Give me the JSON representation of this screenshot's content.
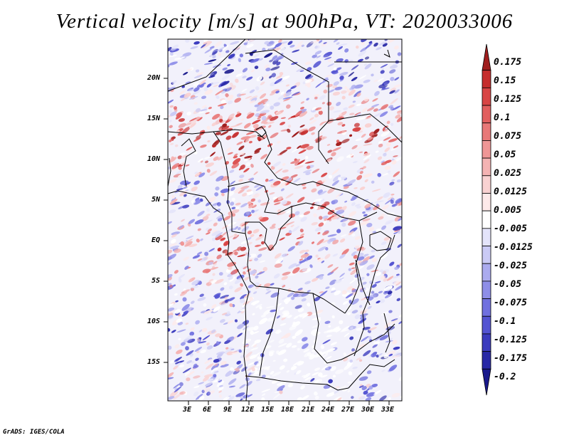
{
  "title": "Vertical velocity [m/s] at 900hPa, VT: 2020033006",
  "credit": "GrADS: IGES/COLA",
  "map": {
    "region": "Central Africa",
    "variable": "Vertical velocity",
    "units": "m/s",
    "level": "900hPa",
    "valid_time": "2020033006",
    "lat_labels": [
      "20N",
      "15N",
      "10N",
      "5N",
      "EQ",
      "5S",
      "10S",
      "15S"
    ],
    "lon_labels": [
      "3E",
      "6E",
      "9E",
      "12E",
      "15E",
      "18E",
      "21E",
      "24E",
      "27E",
      "30E",
      "33E"
    ]
  },
  "colorbar": {
    "levels": [
      "0.175",
      "0.15",
      "0.125",
      "0.1",
      "0.075",
      "0.05",
      "0.025",
      "0.0125",
      "0.005",
      "-0.005",
      "-0.0125",
      "-0.025",
      "-0.05",
      "-0.075",
      "-0.1",
      "-0.125",
      "-0.175",
      "-0.2"
    ],
    "colors": [
      "#a01e1e",
      "#c62d2d",
      "#d84545",
      "#e25f5f",
      "#e87878",
      "#ef9696",
      "#f4b3b3",
      "#f9d2d2",
      "#fdeaea",
      "#ffffff",
      "#e4e4fa",
      "#cacaf5",
      "#ababef",
      "#8e8ee8",
      "#7070df",
      "#5454d2",
      "#3b3bbe",
      "#2828a6",
      "#1a1a8c"
    ],
    "accent_positive": "#c62d2d",
    "accent_negative": "#2828a6"
  }
}
